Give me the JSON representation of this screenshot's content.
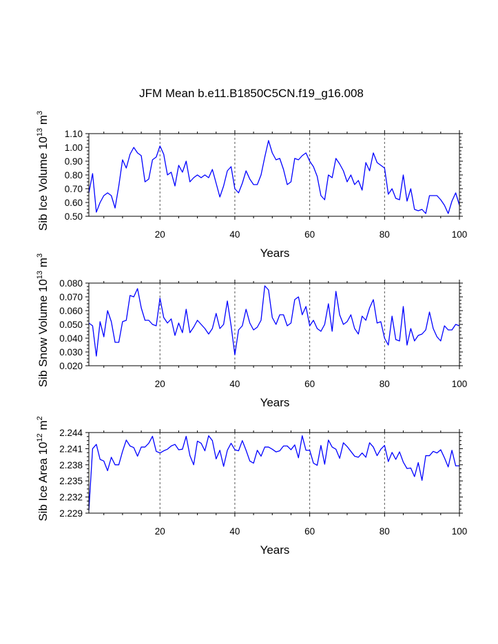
{
  "title": "JFM Mean b.e11.B1850C5CN.f19_g16.008",
  "colors": {
    "line": "#0000ff",
    "axis": "#000000",
    "grid": "#555555"
  },
  "chart_data": [
    {
      "type": "line",
      "name": "sib-ice-volume",
      "title": "JFM Mean b.e11.B1850C5CN.f19_g16.008",
      "xlabel": "Years",
      "ylabel_base": "Sib Ice Volume 10",
      "ylabel_exp": "13",
      "ylabel_unit": "m",
      "ylabel_unit_exp": "3",
      "xlim": [
        1,
        100
      ],
      "ylim": [
        0.5,
        1.1
      ],
      "xticks": [
        20,
        40,
        60,
        80,
        100
      ],
      "xtick_labels": [
        "20",
        "40",
        "60",
        "80",
        "100"
      ],
      "yticks": [
        0.5,
        0.6,
        0.7,
        0.8,
        0.9,
        1.0,
        1.1
      ],
      "ytick_labels": [
        "0.50",
        "0.60",
        "0.70",
        "0.80",
        "0.90",
        "1.00",
        "1.10"
      ],
      "vlines": [
        20,
        40,
        60,
        80
      ],
      "values": [
        0.67,
        0.81,
        0.53,
        0.6,
        0.65,
        0.67,
        0.65,
        0.56,
        0.72,
        0.91,
        0.85,
        0.95,
        1.0,
        0.96,
        0.94,
        0.75,
        0.77,
        0.91,
        0.93,
        1.01,
        0.95,
        0.8,
        0.82,
        0.72,
        0.87,
        0.82,
        0.9,
        0.75,
        0.78,
        0.8,
        0.78,
        0.8,
        0.78,
        0.84,
        0.74,
        0.64,
        0.72,
        0.83,
        0.86,
        0.7,
        0.67,
        0.74,
        0.83,
        0.77,
        0.73,
        0.73,
        0.8,
        0.93,
        1.05,
        0.96,
        0.91,
        0.92,
        0.84,
        0.73,
        0.75,
        0.92,
        0.91,
        0.94,
        0.96,
        0.9,
        0.86,
        0.79,
        0.65,
        0.62,
        0.8,
        0.78,
        0.92,
        0.88,
        0.83,
        0.75,
        0.8,
        0.73,
        0.76,
        0.69,
        0.89,
        0.83,
        0.96,
        0.89,
        0.87,
        0.85,
        0.66,
        0.7,
        0.63,
        0.62,
        0.8,
        0.61,
        0.7,
        0.55,
        0.54,
        0.55,
        0.52,
        0.65,
        0.65,
        0.65,
        0.62,
        0.58,
        0.52,
        0.61,
        0.67,
        0.58
      ]
    },
    {
      "type": "line",
      "name": "sib-snow-volume",
      "xlabel": "Years",
      "ylabel_base": "Sib Snow Volume 10",
      "ylabel_exp": "13",
      "ylabel_unit": "m",
      "ylabel_unit_exp": "3",
      "xlim": [
        1,
        100
      ],
      "ylim": [
        0.02,
        0.08
      ],
      "xticks": [
        20,
        40,
        60,
        80,
        100
      ],
      "xtick_labels": [
        "20",
        "40",
        "60",
        "80",
        "100"
      ],
      "yticks": [
        0.02,
        0.03,
        0.04,
        0.05,
        0.06,
        0.07,
        0.08
      ],
      "ytick_labels": [
        "0.020",
        "0.030",
        "0.040",
        "0.050",
        "0.060",
        "0.070",
        "0.080"
      ],
      "vlines": [
        20,
        40,
        60,
        80
      ],
      "values": [
        0.051,
        0.049,
        0.027,
        0.052,
        0.041,
        0.06,
        0.052,
        0.037,
        0.037,
        0.052,
        0.053,
        0.071,
        0.07,
        0.076,
        0.062,
        0.053,
        0.053,
        0.05,
        0.049,
        0.069,
        0.055,
        0.051,
        0.054,
        0.042,
        0.051,
        0.044,
        0.061,
        0.044,
        0.048,
        0.053,
        0.05,
        0.047,
        0.043,
        0.047,
        0.058,
        0.047,
        0.05,
        0.067,
        0.049,
        0.028,
        0.046,
        0.049,
        0.061,
        0.051,
        0.046,
        0.048,
        0.053,
        0.078,
        0.075,
        0.055,
        0.05,
        0.057,
        0.057,
        0.049,
        0.051,
        0.068,
        0.07,
        0.057,
        0.063,
        0.049,
        0.053,
        0.047,
        0.045,
        0.05,
        0.065,
        0.045,
        0.074,
        0.057,
        0.05,
        0.052,
        0.057,
        0.047,
        0.043,
        0.056,
        0.053,
        0.062,
        0.068,
        0.051,
        0.052,
        0.04,
        0.035,
        0.056,
        0.039,
        0.038,
        0.063,
        0.035,
        0.047,
        0.038,
        0.042,
        0.043,
        0.046,
        0.059,
        0.047,
        0.041,
        0.038,
        0.049,
        0.046,
        0.046,
        0.05,
        0.049
      ]
    },
    {
      "type": "line",
      "name": "sib-ice-area",
      "xlabel": "Years",
      "ylabel_base": "Sib Ice Area 10",
      "ylabel_exp": "12",
      "ylabel_unit": "m",
      "ylabel_unit_exp": "2",
      "xlim": [
        1,
        100
      ],
      "ylim": [
        2.229,
        2.244
      ],
      "xticks": [
        20,
        40,
        60,
        80,
        100
      ],
      "xtick_labels": [
        "20",
        "40",
        "60",
        "80",
        "100"
      ],
      "yticks": [
        2.229,
        2.232,
        2.235,
        2.238,
        2.241,
        2.244
      ],
      "ytick_labels": [
        "2.229",
        "2.232",
        "2.235",
        "2.238",
        "2.241",
        "2.244"
      ],
      "vlines": [
        20,
        40,
        60,
        80
      ],
      "values": [
        2.2295,
        2.241,
        2.2418,
        2.239,
        2.2387,
        2.2369,
        2.2394,
        2.238,
        2.238,
        2.2405,
        2.2426,
        2.2415,
        2.2412,
        2.2396,
        2.2413,
        2.2413,
        2.242,
        2.2433,
        2.2405,
        2.2402,
        2.2406,
        2.2409,
        2.2415,
        2.2418,
        2.2408,
        2.2409,
        2.2433,
        2.2397,
        2.238,
        2.2424,
        2.242,
        2.2406,
        2.2434,
        2.2425,
        2.2391,
        2.2407,
        2.2377,
        2.2407,
        2.242,
        2.2408,
        2.2406,
        2.2425,
        2.2407,
        2.2387,
        2.2383,
        2.2407,
        2.2396,
        2.2413,
        2.2413,
        2.2409,
        2.2404,
        2.2406,
        2.2415,
        2.2415,
        2.2408,
        2.2417,
        2.2393,
        2.2434,
        2.2407,
        2.2407,
        2.2383,
        2.2379,
        2.2416,
        2.2381,
        2.2426,
        2.2413,
        2.2409,
        2.2392,
        2.2421,
        2.2414,
        2.2405,
        2.2396,
        2.2394,
        2.2402,
        2.2394,
        2.2421,
        2.2413,
        2.2397,
        2.2409,
        2.2416,
        2.2386,
        2.2403,
        2.239,
        2.2404,
        2.2385,
        2.2373,
        2.2374,
        2.2358,
        2.2384,
        2.2351,
        2.2397,
        2.2397,
        2.2405,
        2.2402,
        2.2408,
        2.2393,
        2.2376,
        2.2407,
        2.2378,
        2.2378
      ]
    }
  ]
}
